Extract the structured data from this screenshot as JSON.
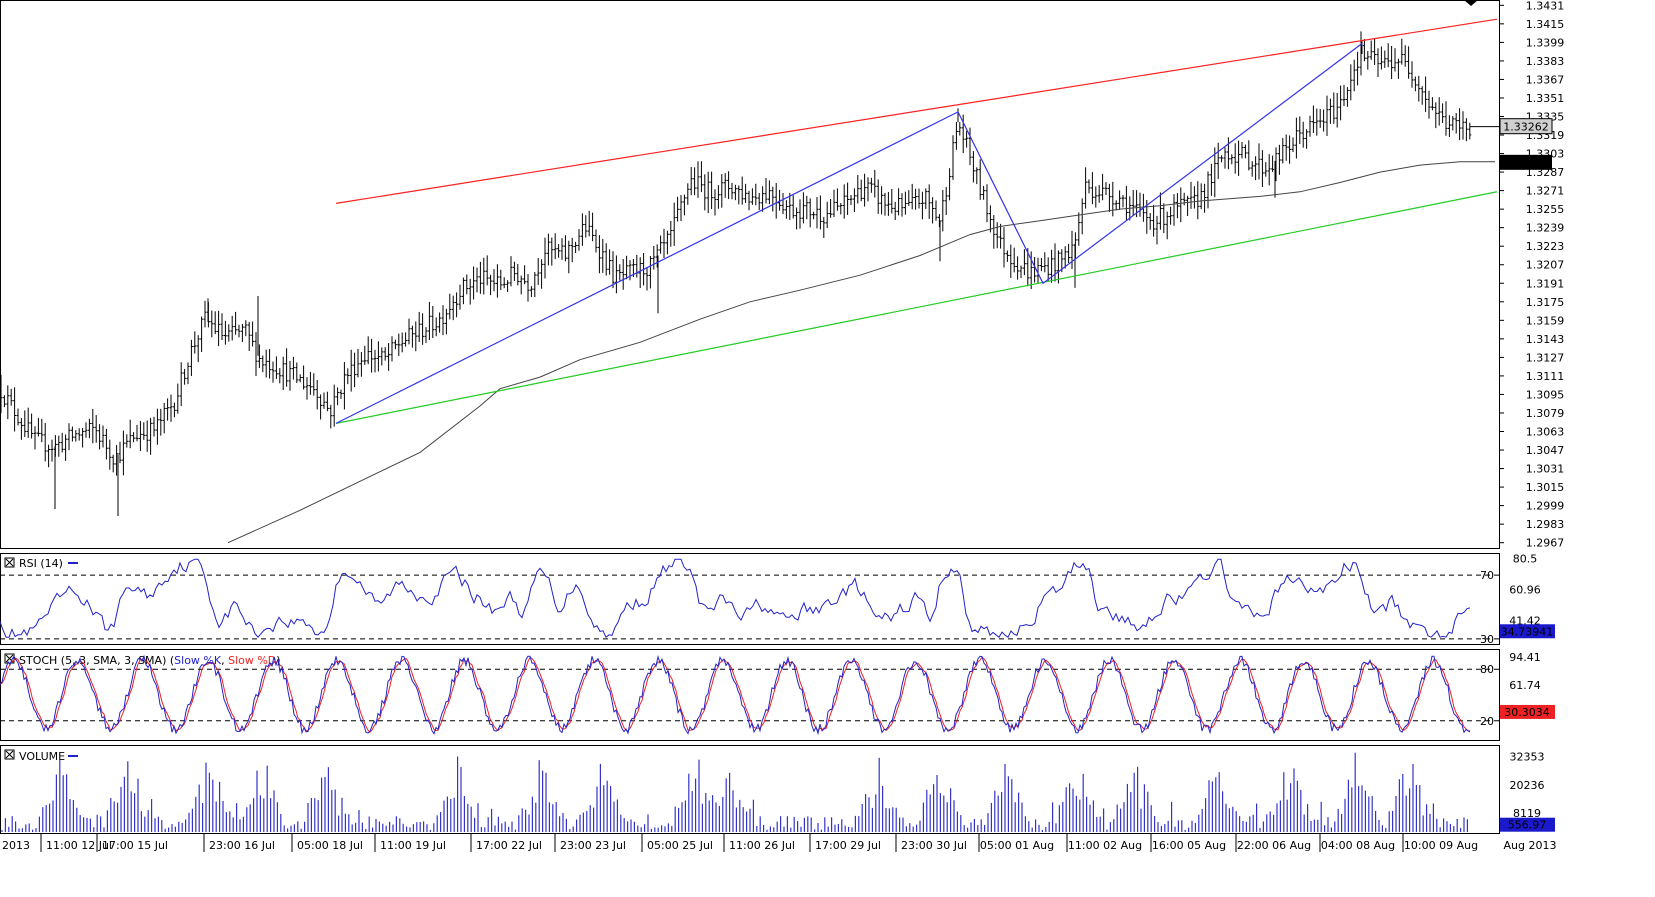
{
  "colors": {
    "background": "#ffffff",
    "bars": "#000000",
    "upper_channel": "#ff2020",
    "lower_channel": "#22cc22",
    "zigzag": "#3333ee",
    "moving_average": "#444444",
    "rsi_line": "#2222cc",
    "stoch_k": "#2222cc",
    "stoch_d": "#ee2222",
    "volume_bars": "#3333cc",
    "current_price_box": "#d0d0d0",
    "ma_box": "#000000",
    "indicator_value_box": "#1a1acc",
    "stoch_value_box": "#ee2222"
  },
  "x_labels": [
    "2013",
    "11:00 12 Jul",
    "17:00 15 Jul",
    "23:00 16 Jul",
    "05:00 18 Jul",
    "11:00 19 Jul",
    "17:00 22 Jul",
    "23:00 23 Jul",
    "05:00 25 Jul",
    "11:00 26 Jul",
    "17:00 29 Jul",
    "23:00 30 Jul",
    "05:00 01 Aug",
    "11:00 02 Aug",
    "16:00 05 Aug",
    "22:00 06 Aug",
    "04:00 08 Aug",
    "10:00 09 Aug",
    "Aug 2013"
  ],
  "chart_data": [
    {
      "type": "ohlc",
      "panel": "price",
      "y_ticks": [
        "1.3431",
        "1.3415",
        "1.3399",
        "1.3383",
        "1.3367",
        "1.3351",
        "1.3335",
        "1.3319",
        "1.3303",
        "1.3287",
        "1.3271",
        "1.3255",
        "1.3239",
        "1.3223",
        "1.3207",
        "1.3191",
        "1.3175",
        "1.3159",
        "1.3143",
        "1.3127",
        "1.3111",
        "1.3095",
        "1.3079",
        "1.3063",
        "1.3047",
        "1.3031",
        "1.3015",
        "1.2999",
        "1.2983",
        "1.2967"
      ],
      "ylim": [
        1.2965,
        1.3433
      ],
      "close_path": [
        [
          0,
          1.31
        ],
        [
          15,
          1.308
        ],
        [
          35,
          1.3055
        ],
        [
          55,
          1.305
        ],
        [
          75,
          1.306
        ],
        [
          95,
          1.3065
        ],
        [
          115,
          1.304
        ],
        [
          135,
          1.306
        ],
        [
          155,
          1.3065
        ],
        [
          175,
          1.309
        ],
        [
          190,
          1.313
        ],
        [
          205,
          1.316
        ],
        [
          225,
          1.3145
        ],
        [
          245,
          1.315
        ],
        [
          260,
          1.3125
        ],
        [
          275,
          1.312
        ],
        [
          295,
          1.311
        ],
        [
          315,
          1.31
        ],
        [
          330,
          1.308
        ],
        [
          345,
          1.311
        ],
        [
          365,
          1.313
        ],
        [
          385,
          1.3125
        ],
        [
          400,
          1.314
        ],
        [
          420,
          1.315
        ],
        [
          440,
          1.316
        ],
        [
          460,
          1.3185
        ],
        [
          480,
          1.3195
        ],
        [
          500,
          1.319
        ],
        [
          515,
          1.32
        ],
        [
          530,
          1.319
        ],
        [
          545,
          1.322
        ],
        [
          565,
          1.3215
        ],
        [
          585,
          1.324
        ],
        [
          600,
          1.322
        ],
        [
          615,
          1.3195
        ],
        [
          630,
          1.32
        ],
        [
          650,
          1.3205
        ],
        [
          670,
          1.323
        ],
        [
          690,
          1.328
        ],
        [
          710,
          1.327
        ],
        [
          730,
          1.3275
        ],
        [
          750,
          1.3265
        ],
        [
          770,
          1.327
        ],
        [
          790,
          1.3255
        ],
        [
          805,
          1.3255
        ],
        [
          825,
          1.325
        ],
        [
          845,
          1.326
        ],
        [
          865,
          1.3275
        ],
        [
          885,
          1.326
        ],
        [
          905,
          1.3255
        ],
        [
          925,
          1.3265
        ],
        [
          940,
          1.3245
        ],
        [
          958,
          1.333
        ],
        [
          970,
          1.33
        ],
        [
          985,
          1.326
        ],
        [
          1000,
          1.3225
        ],
        [
          1015,
          1.321
        ],
        [
          1030,
          1.32
        ],
        [
          1045,
          1.3205
        ],
        [
          1060,
          1.321
        ],
        [
          1075,
          1.3225
        ],
        [
          1085,
          1.3275
        ],
        [
          1100,
          1.327
        ],
        [
          1120,
          1.3265
        ],
        [
          1140,
          1.325
        ],
        [
          1155,
          1.3245
        ],
        [
          1175,
          1.3255
        ],
        [
          1195,
          1.326
        ],
        [
          1210,
          1.328
        ],
        [
          1225,
          1.3305
        ],
        [
          1245,
          1.33
        ],
        [
          1265,
          1.329
        ],
        [
          1280,
          1.33
        ],
        [
          1300,
          1.332
        ],
        [
          1320,
          1.333
        ],
        [
          1340,
          1.3345
        ],
        [
          1360,
          1.339
        ],
        [
          1380,
          1.338
        ],
        [
          1400,
          1.3385
        ],
        [
          1415,
          1.337
        ],
        [
          1430,
          1.3345
        ],
        [
          1445,
          1.333
        ],
        [
          1460,
          1.3325
        ],
        [
          1470,
          1.3326
        ]
      ],
      "moving_average": [
        [
          228,
          1.2967
        ],
        [
          300,
          1.2995
        ],
        [
          360,
          1.302
        ],
        [
          420,
          1.3045
        ],
        [
          480,
          1.3085
        ],
        [
          500,
          1.31
        ],
        [
          540,
          1.311
        ],
        [
          580,
          1.3125
        ],
        [
          640,
          1.314
        ],
        [
          700,
          1.316
        ],
        [
          750,
          1.3175
        ],
        [
          800,
          1.3185
        ],
        [
          860,
          1.3198
        ],
        [
          920,
          1.3215
        ],
        [
          970,
          1.3233
        ],
        [
          1000,
          1.324
        ],
        [
          1040,
          1.3245
        ],
        [
          1080,
          1.325
        ],
        [
          1120,
          1.3255
        ],
        [
          1160,
          1.3258
        ],
        [
          1200,
          1.3262
        ],
        [
          1260,
          1.3266
        ],
        [
          1300,
          1.327
        ],
        [
          1340,
          1.3278
        ],
        [
          1380,
          1.3287
        ],
        [
          1420,
          1.3293
        ],
        [
          1460,
          1.3296
        ],
        [
          1495,
          1.3296
        ]
      ],
      "upper_channel": [
        [
          336,
          1.326
        ],
        [
          1497,
          1.3419
        ]
      ],
      "lower_channel": [
        [
          336,
          1.307
        ],
        [
          1497,
          1.327
        ]
      ],
      "zigzag": [
        [
          336,
          1.307
        ],
        [
          958,
          1.3339
        ],
        [
          1043,
          1.3191
        ],
        [
          1362,
          1.3398
        ],
        [
          1470,
          1.3326
        ]
      ],
      "current_price_label": "1.33262",
      "current_price": 1.33262,
      "ma_label": "1.32950",
      "ma_value": 1.3295
    },
    {
      "type": "line",
      "panel": "rsi",
      "title": "RSI (14)",
      "y_ticks": [
        "80.5",
        "70",
        "60.96",
        "41.42",
        "30"
      ],
      "tick_values": [
        80.5,
        70,
        60.96,
        41.42,
        30
      ],
      "ylim": [
        28,
        82
      ],
      "levels": [
        70,
        30
      ],
      "value_label": "34.73941",
      "value": 34.73941
    },
    {
      "type": "line",
      "panel": "stoch",
      "title": "STOCH (5, 3, SMA, 3, SMA)",
      "series": [
        {
          "name": "Slow %K"
        },
        {
          "name": "Slow %D"
        }
      ],
      "y_ticks": [
        "94.41",
        "80",
        "61.74",
        "20"
      ],
      "tick_values": [
        94.41,
        80,
        61.74,
        20
      ],
      "ylim": [
        0,
        100
      ],
      "levels": [
        80,
        20
      ],
      "value_label_d": "30.3034",
      "value_d": 30.3034,
      "value_k": 27.04
    },
    {
      "type": "bar",
      "panel": "volume",
      "title": "VOLUME",
      "y_ticks": [
        "32353",
        "20236",
        "8119"
      ],
      "tick_values": [
        32353,
        20236,
        8119
      ],
      "ylim": [
        0,
        36000
      ],
      "value_label": "556.97",
      "value": 556.97,
      "spike_x": [
        60,
        128,
        208,
        263,
        326,
        458,
        540,
        603,
        695,
        733,
        878,
        940,
        1006,
        1077,
        1135,
        1218,
        1290,
        1356,
        1410
      ]
    }
  ]
}
